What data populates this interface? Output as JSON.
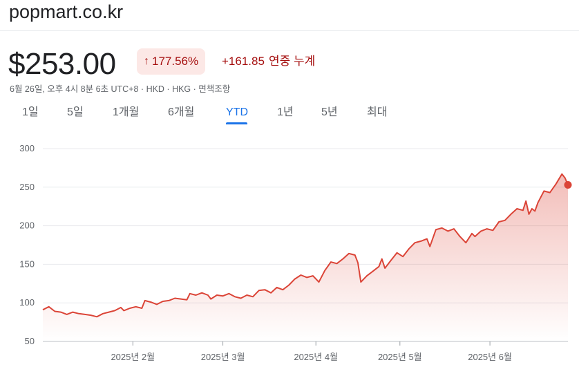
{
  "header": {
    "site": "popmart.co.kr"
  },
  "quote": {
    "price": "$253.00",
    "change_pct": "177.56%",
    "change_abs": "+161.85",
    "change_period": "연중 누계",
    "meta": "6월 26일, 오후 4시 8분 6초 UTC+8 · HKD · HKG · 면책조항"
  },
  "tabs": [
    {
      "label": "1일",
      "active": false
    },
    {
      "label": "5일",
      "active": false
    },
    {
      "label": "1개월",
      "active": false
    },
    {
      "label": "6개월",
      "active": false
    },
    {
      "label": "YTD",
      "active": true
    },
    {
      "label": "1년",
      "active": false
    },
    {
      "label": "5년",
      "active": false
    },
    {
      "label": "최대",
      "active": false
    }
  ],
  "colors": {
    "line": "#db4437",
    "badge_bg": "#fce8e6",
    "negative_text": "#a50e0e",
    "active_tab": "#1a73e8"
  },
  "chart_data": {
    "type": "area",
    "ylim": [
      50,
      300
    ],
    "yticks": [
      50,
      100,
      150,
      200,
      250,
      300
    ],
    "xlim": [
      "2025-01-02",
      "2025-06-26"
    ],
    "xticks": [
      {
        "date": "2025-02-01",
        "label": "2025년 2월"
      },
      {
        "date": "2025-03-03",
        "label": "2025년 3월"
      },
      {
        "date": "2025-04-03",
        "label": "2025년 4월"
      },
      {
        "date": "2025-05-01",
        "label": "2025년 5월"
      },
      {
        "date": "2025-05-31",
        "label": "2025년 6월"
      }
    ],
    "grid": true,
    "series": [
      {
        "points": [
          [
            "2025-01-02",
            91
          ],
          [
            "2025-01-04",
            95
          ],
          [
            "2025-01-06",
            89
          ],
          [
            "2025-01-08",
            88
          ],
          [
            "2025-01-10",
            85
          ],
          [
            "2025-01-12",
            88
          ],
          [
            "2025-01-14",
            86
          ],
          [
            "2025-01-16",
            85
          ],
          [
            "2025-01-18",
            84
          ],
          [
            "2025-01-20",
            82
          ],
          [
            "2025-01-22",
            86
          ],
          [
            "2025-01-24",
            88
          ],
          [
            "2025-01-26",
            90
          ],
          [
            "2025-01-28",
            94
          ],
          [
            "2025-01-29",
            90
          ],
          [
            "2025-01-31",
            93
          ],
          [
            "2025-02-02",
            95
          ],
          [
            "2025-02-04",
            93
          ],
          [
            "2025-02-05",
            103
          ],
          [
            "2025-02-07",
            101
          ],
          [
            "2025-02-09",
            98
          ],
          [
            "2025-02-11",
            102
          ],
          [
            "2025-02-13",
            103
          ],
          [
            "2025-02-15",
            106
          ],
          [
            "2025-02-17",
            105
          ],
          [
            "2025-02-19",
            104
          ],
          [
            "2025-02-20",
            112
          ],
          [
            "2025-02-22",
            110
          ],
          [
            "2025-02-24",
            113
          ],
          [
            "2025-02-26",
            110
          ],
          [
            "2025-02-27",
            105
          ],
          [
            "2025-03-01",
            110
          ],
          [
            "2025-03-03",
            109
          ],
          [
            "2025-03-05",
            112
          ],
          [
            "2025-03-07",
            108
          ],
          [
            "2025-03-09",
            106
          ],
          [
            "2025-03-11",
            110
          ],
          [
            "2025-03-13",
            108
          ],
          [
            "2025-03-15",
            116
          ],
          [
            "2025-03-17",
            117
          ],
          [
            "2025-03-19",
            113
          ],
          [
            "2025-03-21",
            120
          ],
          [
            "2025-03-23",
            117
          ],
          [
            "2025-03-25",
            123
          ],
          [
            "2025-03-27",
            131
          ],
          [
            "2025-03-29",
            136
          ],
          [
            "2025-03-31",
            133
          ],
          [
            "2025-04-02",
            135
          ],
          [
            "2025-04-04",
            127
          ],
          [
            "2025-04-06",
            142
          ],
          [
            "2025-04-08",
            153
          ],
          [
            "2025-04-10",
            151
          ],
          [
            "2025-04-12",
            157
          ],
          [
            "2025-04-14",
            164
          ],
          [
            "2025-04-16",
            162
          ],
          [
            "2025-04-17",
            152
          ],
          [
            "2025-04-18",
            127
          ],
          [
            "2025-04-20",
            135
          ],
          [
            "2025-04-22",
            141
          ],
          [
            "2025-04-24",
            147
          ],
          [
            "2025-04-25",
            157
          ],
          [
            "2025-04-26",
            145
          ],
          [
            "2025-04-28",
            155
          ],
          [
            "2025-04-30",
            165
          ],
          [
            "2025-05-02",
            160
          ],
          [
            "2025-05-04",
            170
          ],
          [
            "2025-05-06",
            178
          ],
          [
            "2025-05-08",
            180
          ],
          [
            "2025-05-10",
            183
          ],
          [
            "2025-05-11",
            173
          ],
          [
            "2025-05-13",
            195
          ],
          [
            "2025-05-15",
            197
          ],
          [
            "2025-05-17",
            193
          ],
          [
            "2025-05-19",
            196
          ],
          [
            "2025-05-21",
            186
          ],
          [
            "2025-05-23",
            178
          ],
          [
            "2025-05-25",
            190
          ],
          [
            "2025-05-26",
            186
          ],
          [
            "2025-05-28",
            193
          ],
          [
            "2025-05-30",
            196
          ],
          [
            "2025-06-01",
            194
          ],
          [
            "2025-06-03",
            205
          ],
          [
            "2025-06-05",
            207
          ],
          [
            "2025-06-07",
            215
          ],
          [
            "2025-06-09",
            222
          ],
          [
            "2025-06-11",
            220
          ],
          [
            "2025-06-12",
            232
          ],
          [
            "2025-06-13",
            215
          ],
          [
            "2025-06-14",
            222
          ],
          [
            "2025-06-15",
            219
          ],
          [
            "2025-06-16",
            230
          ],
          [
            "2025-06-18",
            245
          ],
          [
            "2025-06-20",
            243
          ],
          [
            "2025-06-22",
            254
          ],
          [
            "2025-06-24",
            267
          ],
          [
            "2025-06-25",
            262
          ],
          [
            "2025-06-26",
            253
          ]
        ]
      }
    ]
  }
}
